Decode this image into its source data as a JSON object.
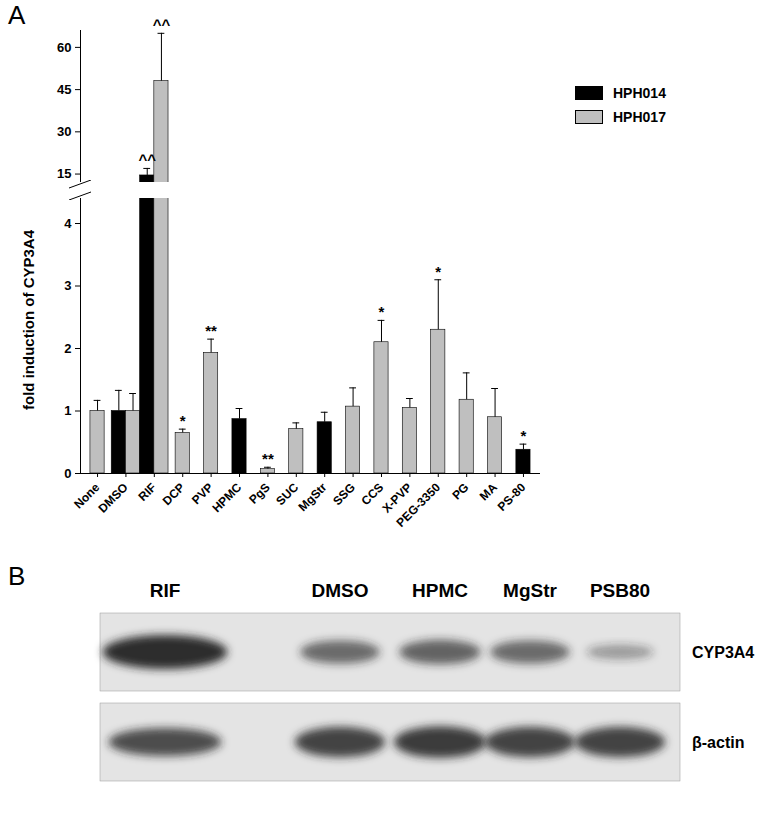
{
  "chart_data": {
    "type": "bar",
    "panel_label": "A",
    "y_label": "fold induction of CYP3A4",
    "categories": [
      "None",
      "DMSO",
      "RIF",
      "DCP",
      "PVP",
      "HPMC",
      "PgS",
      "SUC",
      "MgStr",
      "SSG",
      "CCS",
      "X-PVP",
      "PEG-3350",
      "PG",
      "MA",
      "PS-80"
    ],
    "series": [
      {
        "name": "HPH014",
        "color": "#000000",
        "values": [
          null,
          1.0,
          14.5,
          null,
          null,
          0.87,
          null,
          null,
          0.82,
          null,
          null,
          null,
          null,
          null,
          null,
          0.38
        ],
        "errors": [
          null,
          0.33,
          2.5,
          null,
          null,
          0.17,
          null,
          null,
          0.16,
          null,
          null,
          null,
          null,
          null,
          null,
          0.09
        ]
      },
      {
        "name": "HPH017",
        "color": "#bfbfbf",
        "values": [
          1.0,
          1.0,
          48,
          0.65,
          1.93,
          null,
          0.07,
          0.71,
          null,
          1.07,
          2.1,
          1.05,
          2.3,
          1.18,
          0.9,
          null
        ],
        "errors": [
          0.17,
          0.28,
          17,
          0.06,
          0.22,
          null,
          0.03,
          0.1,
          null,
          0.3,
          0.35,
          0.15,
          0.8,
          0.43,
          0.46,
          null
        ]
      }
    ],
    "annotations": [
      {
        "category": "RIF",
        "series": "HPH014",
        "text": "^^"
      },
      {
        "category": "RIF",
        "series": "HPH017",
        "text": "^^"
      },
      {
        "category": "DCP",
        "series": "HPH017",
        "text": "*"
      },
      {
        "category": "PVP",
        "series": "HPH017",
        "text": "**"
      },
      {
        "category": "PgS",
        "series": "HPH017",
        "text": "**"
      },
      {
        "category": "CCS",
        "series": "HPH017",
        "text": "*"
      },
      {
        "category": "PEG-3350",
        "series": "HPH017",
        "text": "*"
      },
      {
        "category": "PS-80",
        "series": "HPH014",
        "text": "*"
      }
    ],
    "ylim": [
      0,
      66
    ],
    "ybreak": [
      4.4,
      12
    ],
    "yticks": [
      0,
      1,
      2,
      3,
      4,
      15,
      30,
      45,
      60
    ],
    "legend": "top-right",
    "grid": false
  },
  "blot": {
    "panel_label": "B",
    "lanes": [
      "RIF",
      "DMSO",
      "HPMC",
      "MgStr",
      "PSB80"
    ],
    "rows": [
      {
        "label": "CYP3A4",
        "intensity": [
          1.0,
          0.55,
          0.6,
          0.55,
          0.2
        ]
      },
      {
        "label": "β-actin",
        "intensity": [
          0.75,
          0.85,
          0.9,
          0.85,
          0.85
        ]
      }
    ]
  }
}
